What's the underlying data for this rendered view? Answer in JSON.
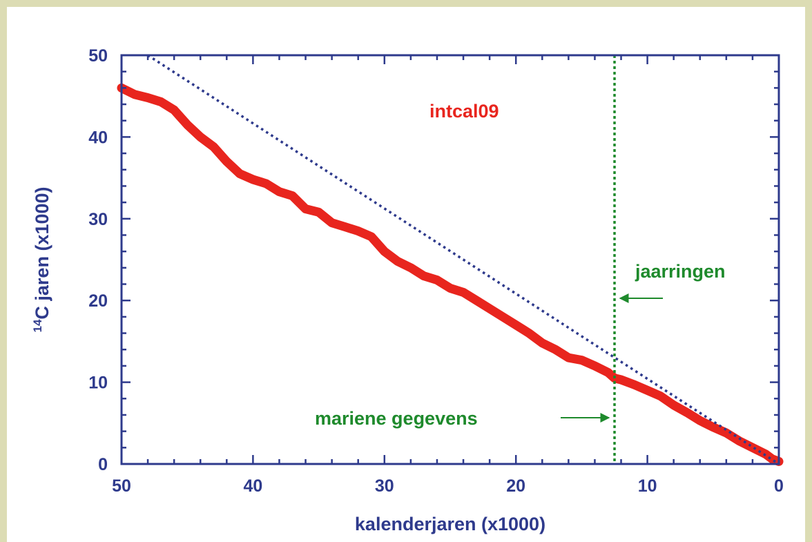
{
  "colors": {
    "page_background": "#dcdcb4",
    "axis": "#2e3a8c",
    "intcal_curve": "#e8251e",
    "reference_line": "#2e3a8c",
    "tree_ring_limit": "#1e8a2c"
  },
  "chart_data": {
    "type": "line",
    "xlabel": "kalenderjaren (x1000)",
    "ylabel_superscript": "14",
    "ylabel_main": "C jaren (x1000)",
    "xlim": [
      50,
      0
    ],
    "ylim": [
      0,
      50
    ],
    "x_reversed": true,
    "x_ticks": [
      50,
      40,
      30,
      20,
      10,
      0
    ],
    "y_ticks": [
      0,
      10,
      20,
      30,
      40,
      50
    ],
    "grid": false,
    "series": [
      {
        "name": "intcal09",
        "style": "thick-band",
        "x": [
          50,
          49,
          48,
          47,
          46,
          45,
          44,
          43,
          42,
          41,
          40,
          39,
          38,
          37,
          36,
          35,
          34,
          33,
          32,
          31,
          30,
          29,
          28,
          27,
          26,
          25,
          24,
          23,
          22,
          21,
          20,
          19,
          18,
          17,
          16,
          15,
          14,
          13,
          12.5,
          12,
          11,
          10,
          9,
          8,
          7,
          6,
          5,
          4,
          3,
          2,
          1,
          0.5,
          0
        ],
        "y": [
          46,
          45.2,
          44.8,
          44.3,
          43.3,
          41.5,
          40,
          38.8,
          37,
          35.5,
          34.8,
          34.3,
          33.3,
          32.8,
          31.2,
          30.8,
          29.5,
          29,
          28.5,
          27.8,
          26,
          24.8,
          24,
          23,
          22.5,
          21.5,
          21,
          20,
          19,
          18,
          17,
          16,
          14.8,
          14,
          13,
          12.7,
          12,
          11.2,
          10.5,
          10.3,
          9.7,
          9,
          8.3,
          7.2,
          6.3,
          5.3,
          4.5,
          3.8,
          2.8,
          2,
          1.2,
          0.6,
          0.3
        ]
      },
      {
        "name": "",
        "style": "dotted-1to1",
        "x": [
          48,
          0
        ],
        "y": [
          50,
          0
        ]
      }
    ],
    "vertical_line": {
      "x": 12.5,
      "style": "dotted"
    },
    "annotations": [
      {
        "text": "intcal09",
        "near_x": 22,
        "near_y": 43
      },
      {
        "text": "jaarringen",
        "near_x": 6,
        "near_y": 23.5
      },
      {
        "text": "mariene gegevens",
        "near_x": 30.5,
        "near_y": 5.5
      }
    ]
  }
}
